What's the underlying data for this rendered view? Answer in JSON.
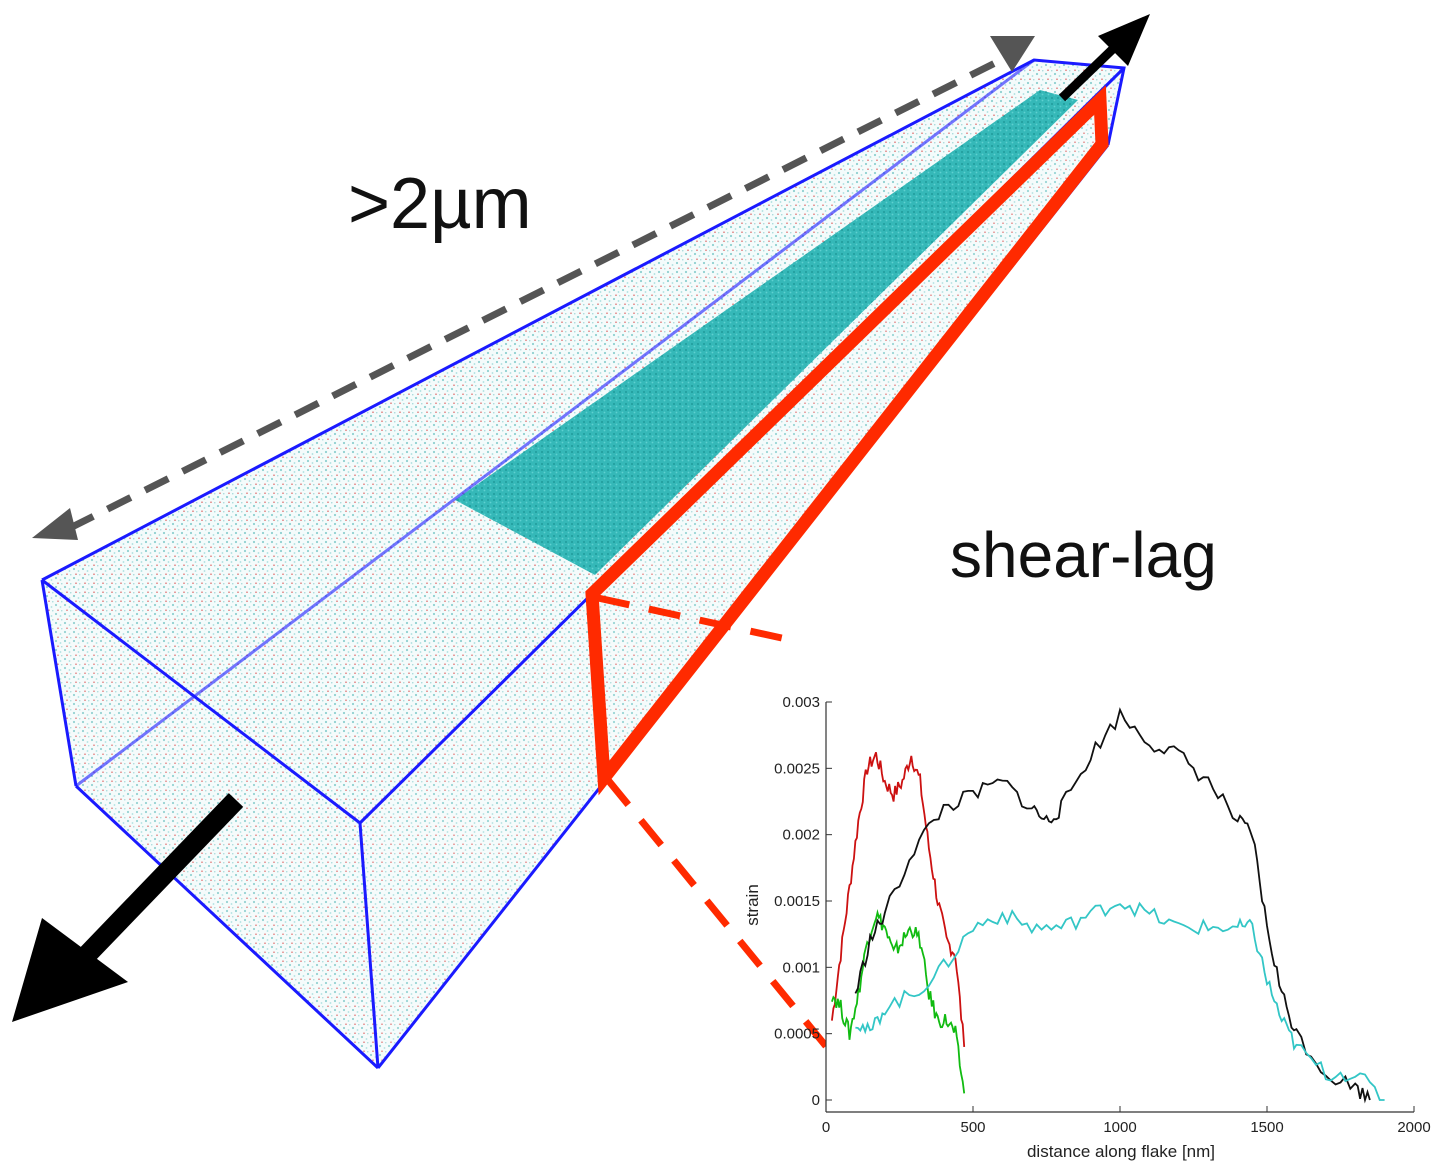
{
  "labels": {
    "length": ">2µm",
    "mechanism": "shear-lag"
  },
  "colors": {
    "box_edge": "#1a1aff",
    "flake": "#2bb3b3",
    "highlight": "#ff2a00",
    "dashed_arrow": "#555555",
    "load_arrow": "#000000",
    "matrix_dots_a": "#8fd0d0",
    "matrix_dots_b": "#e05050"
  },
  "icons": {
    "load_arrow_top": "arrow-up-right-icon",
    "load_arrow_bottom": "arrow-down-left-icon",
    "dimension_arrow": "double-headed-dashed-arrow-icon"
  },
  "chart_data": {
    "type": "line",
    "title": "",
    "xlabel": "distance along flake [nm]",
    "ylabel": "strain",
    "xlim": [
      0,
      2000
    ],
    "ylim": [
      0,
      0.003
    ],
    "xticks": [
      "0",
      "500",
      "1000",
      "1500",
      "2000"
    ],
    "yticks": [
      "0",
      "0.0005",
      "0.001",
      "0.0015",
      "0.002",
      "0.0025",
      "0.003"
    ],
    "grid": false,
    "legend": "none",
    "series": [
      {
        "color": "#cc1111",
        "x": [
          20,
          50,
          80,
          110,
          140,
          170,
          200,
          230,
          260,
          290,
          320,
          350,
          380,
          410,
          440,
          470
        ],
        "y": [
          0.0006,
          0.0011,
          0.0016,
          0.0021,
          0.0025,
          0.0026,
          0.0024,
          0.0023,
          0.0024,
          0.0026,
          0.0024,
          0.0019,
          0.0015,
          0.0012,
          0.0011,
          0.0004
        ]
      },
      {
        "color": "#11bb11",
        "x": [
          20,
          50,
          80,
          110,
          140,
          170,
          200,
          230,
          260,
          290,
          320,
          350,
          380,
          410,
          440,
          470
        ],
        "y": [
          0.0008,
          0.0007,
          0.0005,
          0.0008,
          0.0012,
          0.0014,
          0.0013,
          0.0011,
          0.0012,
          0.0013,
          0.0012,
          0.0008,
          0.0006,
          0.0006,
          0.0005,
          5e-05
        ]
      },
      {
        "color": "#111111",
        "x": [
          100,
          150,
          200,
          300,
          400,
          500,
          600,
          700,
          750,
          800,
          900,
          1000,
          1100,
          1200,
          1300,
          1400,
          1450,
          1500,
          1550,
          1600,
          1700,
          1800,
          1850
        ],
        "y": [
          0.0008,
          0.0012,
          0.0014,
          0.0019,
          0.0022,
          0.0023,
          0.0024,
          0.0022,
          0.0021,
          0.0022,
          0.0026,
          0.0029,
          0.0027,
          0.0026,
          0.0024,
          0.0021,
          0.002,
          0.0013,
          0.0008,
          0.0005,
          0.0002,
          0.0001,
          0.0
        ]
      },
      {
        "color": "#33c6c6",
        "x": [
          100,
          150,
          200,
          300,
          400,
          500,
          600,
          700,
          800,
          900,
          1000,
          1100,
          1200,
          1300,
          1400,
          1450,
          1500,
          1550,
          1600,
          1700,
          1800,
          1900
        ],
        "y": [
          0.0006,
          0.0005,
          0.0007,
          0.0008,
          0.001,
          0.0013,
          0.0014,
          0.0013,
          0.0013,
          0.0014,
          0.0015,
          0.0014,
          0.0013,
          0.0013,
          0.0013,
          0.0013,
          0.0009,
          0.0006,
          0.0004,
          0.0002,
          0.0002,
          0.0
        ]
      }
    ]
  }
}
